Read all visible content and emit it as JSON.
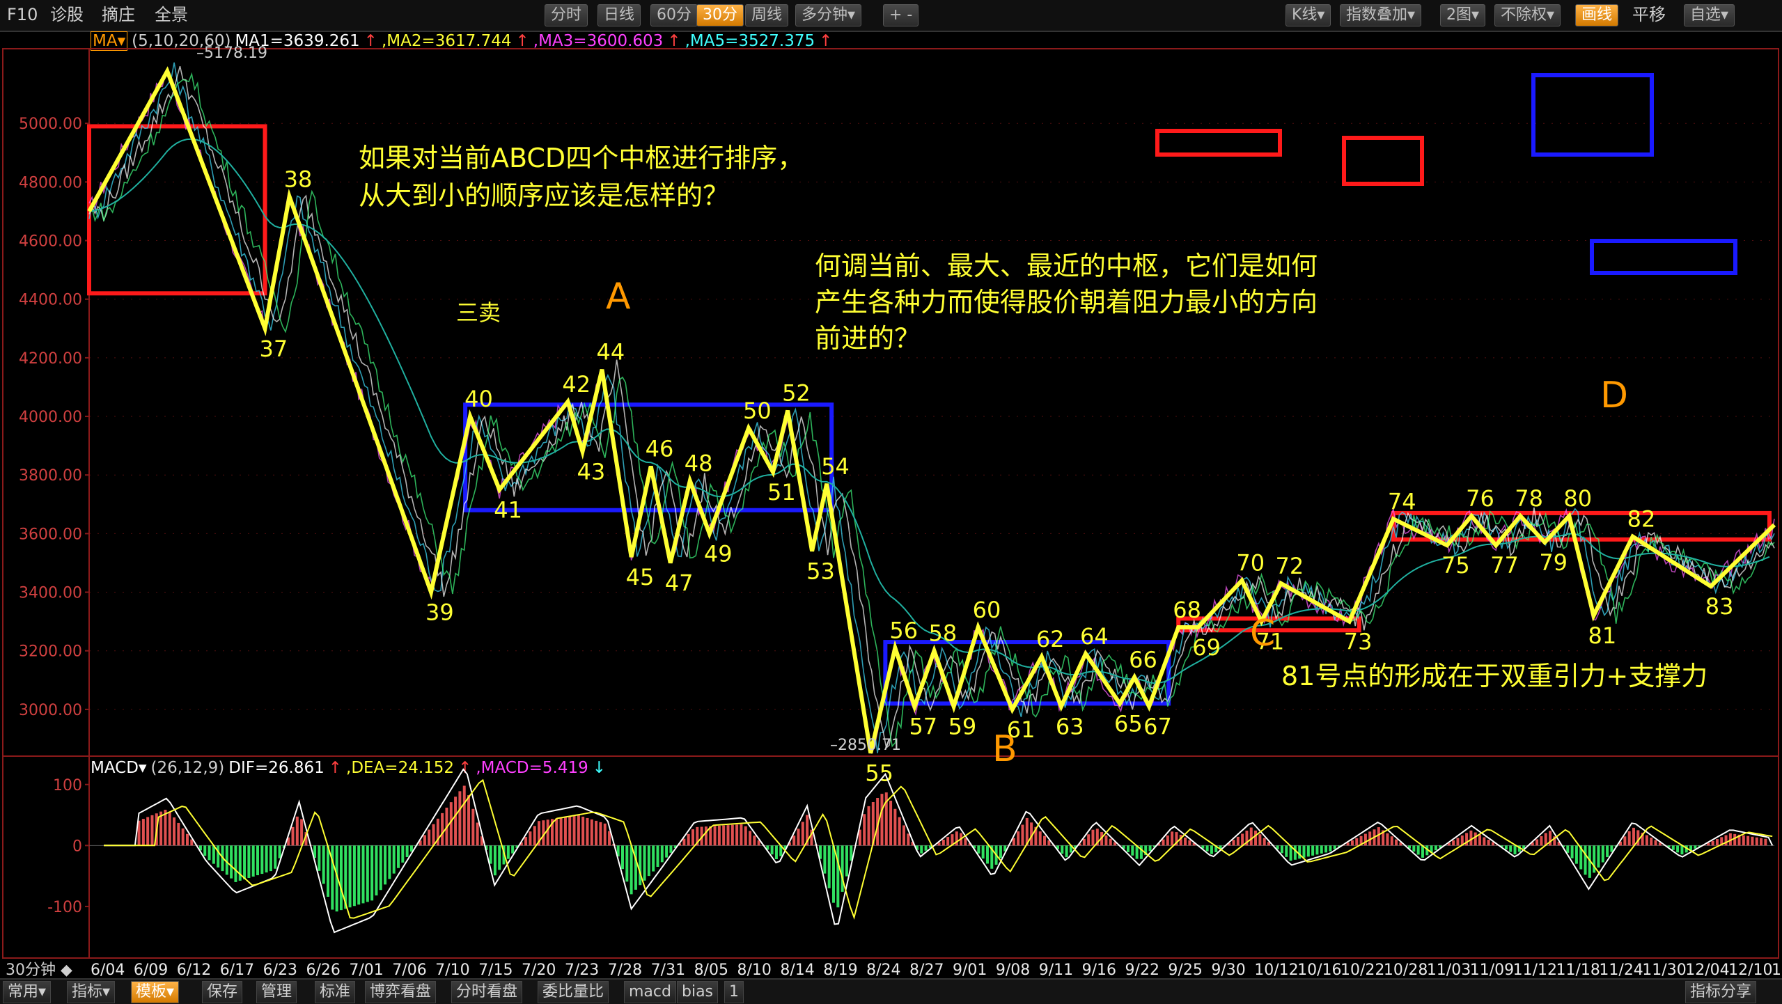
{
  "topbar": {
    "left_items": [
      "F10",
      "诊股",
      "摘庄",
      "全景"
    ],
    "periods": [
      "分时",
      "日线",
      "60分",
      "30分",
      "周线",
      "多分钟▾"
    ],
    "active_period": "30分",
    "zoom": "+ -",
    "right_items": [
      "K线▾",
      "指数叠加▾",
      "2图▾",
      "不除权▾",
      "画线",
      "平移",
      "自选▾"
    ],
    "active_right": "画线"
  },
  "ma_indicator": {
    "label": "MA▾",
    "params": "(5,10,20,60)",
    "ma1": "MA1=3639.261",
    "ma2": ",MA2=3617.744",
    "ma3": ",MA3=3600.603",
    "ma5": ",MA5=3527.375",
    "arrow": "↑"
  },
  "macd_indicator": {
    "label": "MACD▾",
    "params": "(26,12,9)",
    "dif": "DIF=26.861",
    "dea": ",DEA=24.152",
    "macd": ",MACD=5.419",
    "arrow_up": "↑",
    "arrow_down": "↓"
  },
  "annotations": {
    "q1_line1": "如果对当前ABCD四个中枢进行排序，",
    "q1_line2": "从大到小的顺序应该是怎样的？",
    "q2_line1": "何调当前、最大、最近的中枢，它们是如何",
    "q2_line2": "产生各种力而使得股价朝着阻力最小的方向",
    "q2_line3": "前进的？",
    "note81": "81号点的形成在于双重引力+支撑力",
    "label_A": "A",
    "label_B": "B",
    "label_C": "C",
    "label_D": "D",
    "sanmai": "三卖",
    "high_price": "5178.19",
    "low_price": "2850.71"
  },
  "bottombar": {
    "items": [
      "常用▾",
      "指标▾",
      "模板▾",
      "保存",
      "管理",
      "标准",
      "博弈看盘",
      "分时看盘",
      "委比量比",
      "macd",
      "bias",
      "1"
    ],
    "active": "模板▾",
    "right": "指标分享"
  },
  "colors": {
    "price_line": "#ffff33",
    "central_hub_blue": "#1a1aff",
    "central_hub_red": "#ff1a1a",
    "annotation_yellow": "#ffff33",
    "label_orange": "#ff9900",
    "macd_red": "#e05050",
    "macd_green": "#30e060"
  },
  "chart_data": {
    "type": "line",
    "title": "",
    "period": "30分钟",
    "y_ticks": [
      "5000.00",
      "4800.00",
      "4600.00",
      "4400.00",
      "4200.00",
      "4000.00",
      "3800.00",
      "3600.00",
      "3400.00",
      "3200.00",
      "3000.00"
    ],
    "ylim": [
      2850,
      5250
    ],
    "x_ticks": [
      "6/04",
      "6/09",
      "6/12",
      "6/17",
      "6/23",
      "6/26",
      "7/01",
      "7/06",
      "7/10",
      "7/15",
      "7/20",
      "7/23",
      "7/28",
      "7/31",
      "8/05",
      "8/10",
      "8/14",
      "8/19",
      "8/24",
      "8/27",
      "9/01",
      "9/08",
      "9/11",
      "9/16",
      "9/22",
      "9/25",
      "9/30",
      "10/12",
      "10/16",
      "10/22",
      "10/28",
      "11/03",
      "11/09",
      "11/12",
      "11/18",
      "11/24",
      "11/30",
      "12/04",
      "12/10",
      "12/1"
    ],
    "x_label_mode": "30分钟",
    "stroke_points": [
      {
        "t": 0.0,
        "p": 4700
      },
      {
        "t": 1.6,
        "p": 5178.19
      },
      {
        "t": 3.6,
        "p": 4300,
        "label": "37"
      },
      {
        "t": 4.1,
        "p": 4750,
        "label": "38"
      },
      {
        "t": 7.0,
        "p": 3400,
        "label": "39"
      },
      {
        "t": 7.8,
        "p": 4000,
        "label": "40"
      },
      {
        "t": 8.4,
        "p": 3750,
        "label": "41"
      },
      {
        "t": 9.8,
        "p": 4050,
        "label": "42"
      },
      {
        "t": 10.1,
        "p": 3880,
        "label": "43"
      },
      {
        "t": 10.5,
        "p": 4160,
        "label": "44"
      },
      {
        "t": 11.1,
        "p": 3520,
        "label": "45"
      },
      {
        "t": 11.5,
        "p": 3830,
        "label": "46"
      },
      {
        "t": 11.9,
        "p": 3500,
        "label": "47"
      },
      {
        "t": 12.3,
        "p": 3780,
        "label": "48"
      },
      {
        "t": 12.7,
        "p": 3600,
        "label": "49"
      },
      {
        "t": 13.5,
        "p": 3960,
        "label": "50"
      },
      {
        "t": 14.0,
        "p": 3810,
        "label": "51"
      },
      {
        "t": 14.3,
        "p": 4020,
        "label": "52"
      },
      {
        "t": 14.8,
        "p": 3540,
        "label": "53"
      },
      {
        "t": 15.1,
        "p": 3770,
        "label": "54"
      },
      {
        "t": 16.0,
        "p": 2850.71,
        "label": "55"
      },
      {
        "t": 16.5,
        "p": 3210,
        "label": "56"
      },
      {
        "t": 16.9,
        "p": 3010,
        "label": "57"
      },
      {
        "t": 17.3,
        "p": 3200,
        "label": "58"
      },
      {
        "t": 17.7,
        "p": 3010,
        "label": "59"
      },
      {
        "t": 18.2,
        "p": 3280,
        "label": "60"
      },
      {
        "t": 18.9,
        "p": 3000,
        "label": "61"
      },
      {
        "t": 19.5,
        "p": 3180,
        "label": "62"
      },
      {
        "t": 19.9,
        "p": 3010,
        "label": "63"
      },
      {
        "t": 20.4,
        "p": 3190,
        "label": "64"
      },
      {
        "t": 21.1,
        "p": 3020,
        "label": "65"
      },
      {
        "t": 21.4,
        "p": 3110,
        "label": "66"
      },
      {
        "t": 21.7,
        "p": 3010,
        "label": "67"
      },
      {
        "t": 22.3,
        "p": 3280,
        "label": "68"
      },
      {
        "t": 22.7,
        "p": 3280,
        "label": "69"
      },
      {
        "t": 23.6,
        "p": 3440,
        "label": "70"
      },
      {
        "t": 24.0,
        "p": 3300,
        "label": "71"
      },
      {
        "t": 24.4,
        "p": 3430,
        "label": "72"
      },
      {
        "t": 25.8,
        "p": 3300,
        "label": "73"
      },
      {
        "t": 26.7,
        "p": 3650,
        "label": "74"
      },
      {
        "t": 27.8,
        "p": 3560,
        "label": "75"
      },
      {
        "t": 28.3,
        "p": 3660,
        "label": "76"
      },
      {
        "t": 28.8,
        "p": 3560,
        "label": "77"
      },
      {
        "t": 29.3,
        "p": 3660,
        "label": "78"
      },
      {
        "t": 29.8,
        "p": 3570,
        "label": "79"
      },
      {
        "t": 30.3,
        "p": 3660,
        "label": "80"
      },
      {
        "t": 30.8,
        "p": 3320,
        "label": "81"
      },
      {
        "t": 31.6,
        "p": 3590,
        "label": "82"
      },
      {
        "t": 33.2,
        "p": 3420,
        "label": "83"
      },
      {
        "t": 34.5,
        "p": 3630
      }
    ],
    "hubs": [
      {
        "name": "A",
        "t0": 7.7,
        "t1": 15.2,
        "p_low": 3680,
        "p_high": 4040,
        "color": "blue"
      },
      {
        "name": "B",
        "t0": 16.3,
        "t1": 22.1,
        "p_low": 3020,
        "p_high": 3230,
        "color": "blue"
      },
      {
        "name": "C",
        "t0": 22.3,
        "t1": 26.0,
        "p_low": 3270,
        "p_high": 3310,
        "color": "red"
      },
      {
        "name": "D",
        "t0": 26.7,
        "t1": 34.4,
        "p_low": 3580,
        "p_high": 3670,
        "color": "red"
      },
      {
        "name": "upper-left",
        "t0": 0.0,
        "t1": 3.6,
        "p_low": 4420,
        "p_high": 4990,
        "color": "red"
      }
    ],
    "macd": {
      "y_ticks": [
        "100",
        "0",
        "-100"
      ],
      "ylim": [
        -180,
        110
      ],
      "hist": [
        {
          "t": 1.0,
          "v": 40
        },
        {
          "t": 1.6,
          "v": 60
        },
        {
          "t": 2.4,
          "v": -20
        },
        {
          "t": 3.0,
          "v": -60
        },
        {
          "t": 3.8,
          "v": -40
        },
        {
          "t": 4.3,
          "v": 55
        },
        {
          "t": 5.0,
          "v": -110
        },
        {
          "t": 5.8,
          "v": -90
        },
        {
          "t": 6.8,
          "v": 10
        },
        {
          "t": 7.3,
          "v": 60
        },
        {
          "t": 7.7,
          "v": 100
        },
        {
          "t": 8.3,
          "v": -50
        },
        {
          "t": 9.2,
          "v": 40
        },
        {
          "t": 10.0,
          "v": 50
        },
        {
          "t": 10.6,
          "v": 35
        },
        {
          "t": 11.1,
          "v": -80
        },
        {
          "t": 11.7,
          "v": -30
        },
        {
          "t": 12.4,
          "v": 30
        },
        {
          "t": 13.4,
          "v": 35
        },
        {
          "t": 14.1,
          "v": -25
        },
        {
          "t": 14.7,
          "v": 50
        },
        {
          "t": 15.3,
          "v": -110
        },
        {
          "t": 15.9,
          "v": 60
        },
        {
          "t": 16.3,
          "v": 90
        },
        {
          "t": 17.0,
          "v": -15
        },
        {
          "t": 17.8,
          "v": 25
        },
        {
          "t": 18.5,
          "v": -40
        },
        {
          "t": 19.2,
          "v": 45
        },
        {
          "t": 20.0,
          "v": -20
        },
        {
          "t": 20.6,
          "v": 30
        },
        {
          "t": 21.5,
          "v": -25
        },
        {
          "t": 22.2,
          "v": 25
        },
        {
          "t": 23.0,
          "v": -15
        },
        {
          "t": 23.8,
          "v": 30
        },
        {
          "t": 24.6,
          "v": -25
        },
        {
          "t": 25.4,
          "v": -10
        },
        {
          "t": 26.4,
          "v": 30
        },
        {
          "t": 27.3,
          "v": -20
        },
        {
          "t": 28.3,
          "v": 25
        },
        {
          "t": 29.2,
          "v": -15
        },
        {
          "t": 29.9,
          "v": 25
        },
        {
          "t": 30.7,
          "v": -55
        },
        {
          "t": 31.6,
          "v": 30
        },
        {
          "t": 32.6,
          "v": -15
        },
        {
          "t": 33.6,
          "v": 20
        },
        {
          "t": 34.4,
          "v": 10
        }
      ]
    }
  }
}
